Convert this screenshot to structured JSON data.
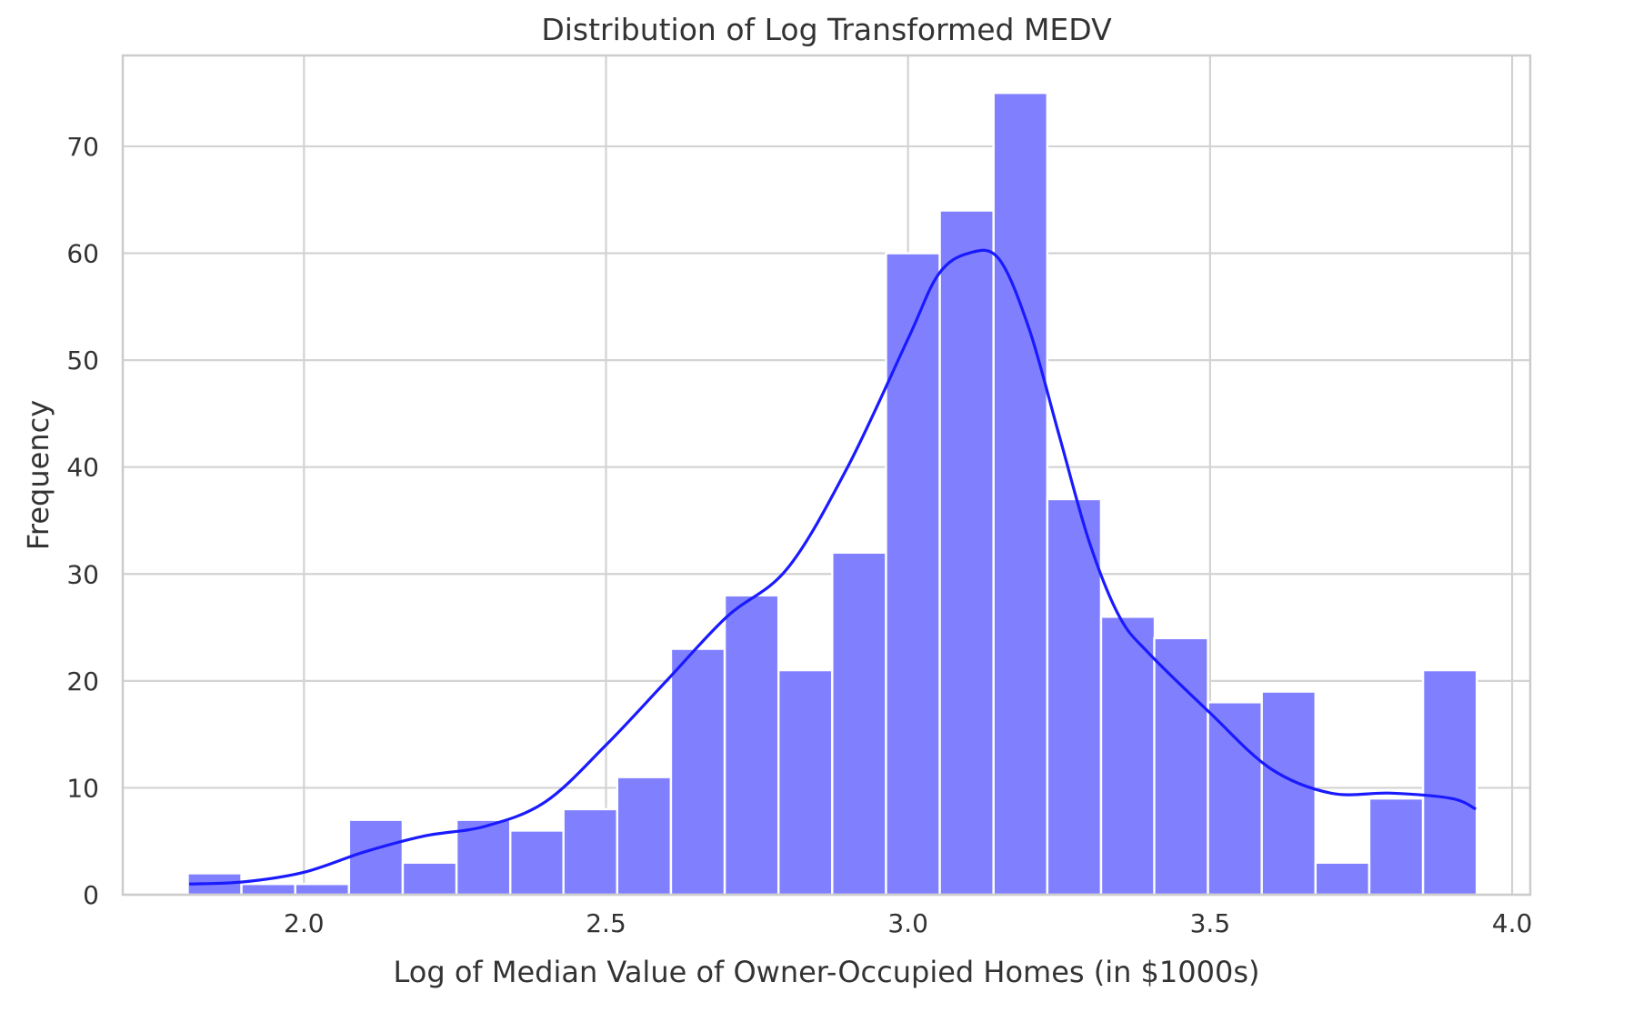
{
  "chart_data": {
    "type": "bar",
    "title": "Distribution of Log Transformed MEDV",
    "xlabel": "Log of Median Value of Owner-Occupied Homes (in $1000s)",
    "ylabel": "Frequency",
    "xlim": [
      1.7,
      4.03
    ],
    "ylim": [
      0,
      78.5
    ],
    "xticks": [
      2.0,
      2.5,
      3.0,
      3.5,
      4.0
    ],
    "xtick_labels": [
      "2.0",
      "2.5",
      "3.0",
      "3.5",
      "4.0"
    ],
    "yticks": [
      0,
      10,
      20,
      30,
      40,
      50,
      60,
      70
    ],
    "ytick_labels": [
      "0",
      "10",
      "20",
      "30",
      "40",
      "50",
      "60",
      "70"
    ],
    "grid": true,
    "bin_start": 1.808,
    "bin_width": 0.0889,
    "bins": [
      {
        "x": 1.852,
        "value": 2
      },
      {
        "x": 1.941,
        "value": 1
      },
      {
        "x": 2.03,
        "value": 1
      },
      {
        "x": 2.119,
        "value": 7
      },
      {
        "x": 2.208,
        "value": 3
      },
      {
        "x": 2.297,
        "value": 7
      },
      {
        "x": 2.386,
        "value": 6
      },
      {
        "x": 2.474,
        "value": 8
      },
      {
        "x": 2.563,
        "value": 11
      },
      {
        "x": 2.652,
        "value": 23
      },
      {
        "x": 2.741,
        "value": 28
      },
      {
        "x": 2.83,
        "value": 21
      },
      {
        "x": 2.919,
        "value": 32
      },
      {
        "x": 3.008,
        "value": 60
      },
      {
        "x": 3.097,
        "value": 64
      },
      {
        "x": 3.186,
        "value": 75
      },
      {
        "x": 3.275,
        "value": 37
      },
      {
        "x": 3.364,
        "value": 26
      },
      {
        "x": 3.452,
        "value": 24
      },
      {
        "x": 3.541,
        "value": 18
      },
      {
        "x": 3.63,
        "value": 19
      },
      {
        "x": 3.719,
        "value": 3
      },
      {
        "x": 3.808,
        "value": 9
      },
      {
        "x": 3.897,
        "value": 21
      }
    ],
    "kde": {
      "x": [
        1.81,
        1.9,
        2.0,
        2.1,
        2.2,
        2.3,
        2.4,
        2.5,
        2.6,
        2.7,
        2.8,
        2.9,
        3.0,
        3.05,
        3.1,
        3.15,
        3.2,
        3.25,
        3.3,
        3.35,
        3.4,
        3.5,
        3.6,
        3.7,
        3.8,
        3.9,
        3.94
      ],
      "y": [
        1.0,
        1.2,
        2.1,
        4.0,
        5.5,
        6.4,
        8.7,
        14.0,
        20.0,
        26.0,
        30.5,
        40.0,
        52.0,
        58.0,
        60.0,
        59.5,
        53.0,
        43.0,
        33.0,
        26.0,
        22.5,
        17.0,
        11.8,
        9.5,
        9.5,
        9.0,
        8.0
      ]
    },
    "colors": {
      "bar": "#8080ff",
      "bar_edge": "#ffffff",
      "kde": "#1a1aff",
      "grid": "#d3d3d3",
      "frame": "#cccccc",
      "text": "#333333"
    }
  }
}
